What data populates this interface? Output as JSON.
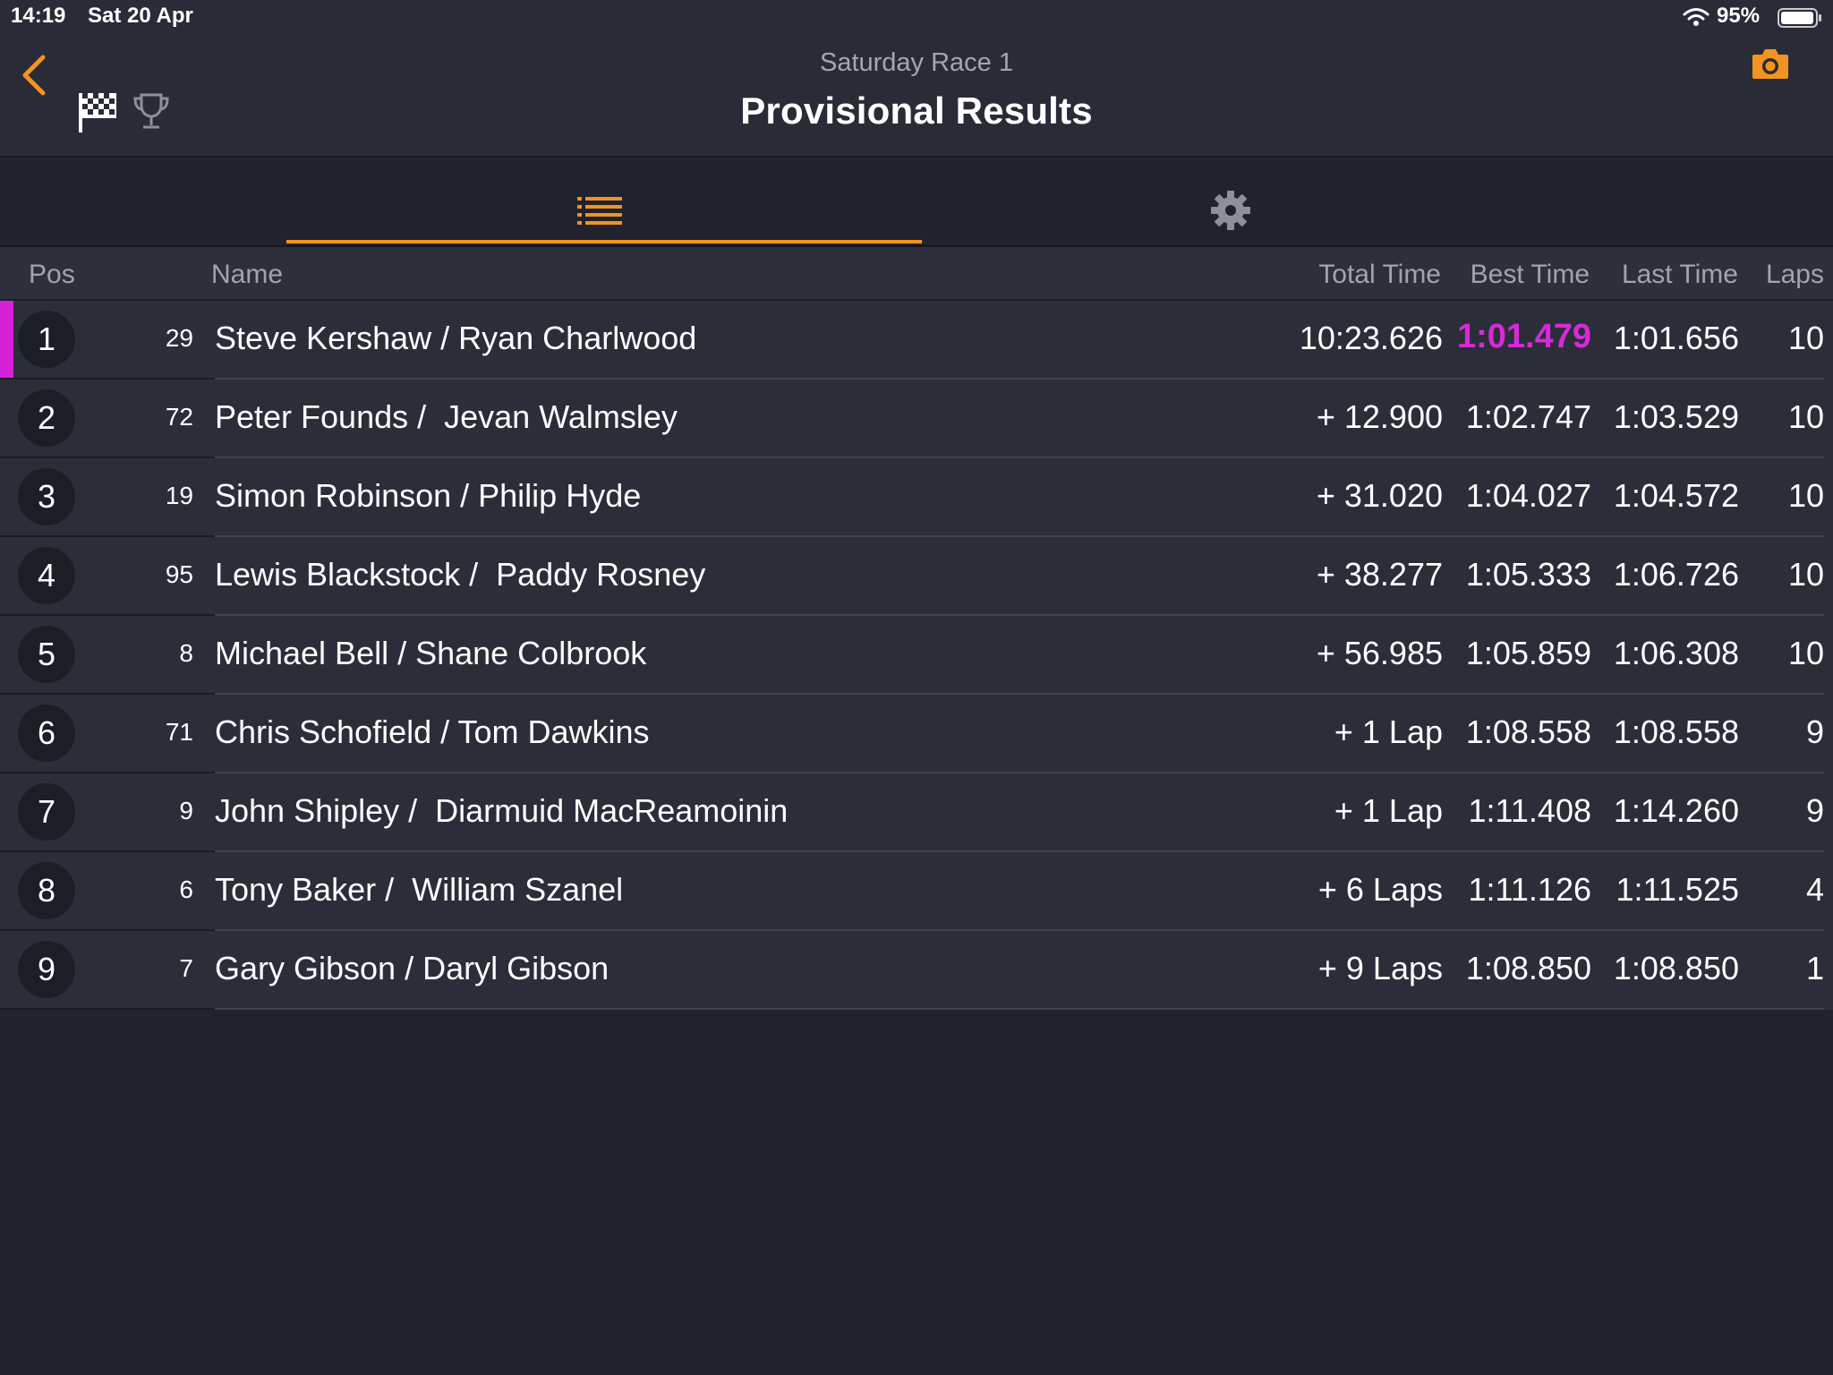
{
  "status_bar": {
    "time": "14:19",
    "date": "Sat 20 Apr",
    "battery_percent": "95%"
  },
  "header": {
    "subtitle": "Saturday Race 1",
    "title": "Provisional Results",
    "accent_color": "#f39321"
  },
  "tabs": [
    {
      "icon": "list-icon",
      "selected": true
    },
    {
      "icon": "gear-icon",
      "selected": false
    }
  ],
  "columns": {
    "pos": "Pos",
    "name": "Name",
    "total_time": "Total Time",
    "best_time": "Best Time",
    "last_time": "Last Time",
    "laps": "Laps"
  },
  "fastest_color": "#d521d8",
  "results": [
    {
      "pos": "1",
      "car": "29",
      "name": "Steve Kershaw / Ryan Charlwood",
      "total": "10:23.626",
      "best": "1:01.479",
      "last": "1:01.656",
      "laps": "10",
      "fastest": true
    },
    {
      "pos": "2",
      "car": "72",
      "name": "Peter Founds /  Jevan Walmsley",
      "total": "+ 12.900",
      "best": "1:02.747",
      "last": "1:03.529",
      "laps": "10",
      "fastest": false
    },
    {
      "pos": "3",
      "car": "19",
      "name": "Simon Robinson / Philip Hyde",
      "total": "+ 31.020",
      "best": "1:04.027",
      "last": "1:04.572",
      "laps": "10",
      "fastest": false
    },
    {
      "pos": "4",
      "car": "95",
      "name": "Lewis Blackstock /  Paddy Rosney",
      "total": "+ 38.277",
      "best": "1:05.333",
      "last": "1:06.726",
      "laps": "10",
      "fastest": false
    },
    {
      "pos": "5",
      "car": "8",
      "name": "Michael Bell / Shane Colbrook",
      "total": "+ 56.985",
      "best": "1:05.859",
      "last": "1:06.308",
      "laps": "10",
      "fastest": false
    },
    {
      "pos": "6",
      "car": "71",
      "name": "Chris Schofield / Tom Dawkins",
      "total": "+ 1 Lap",
      "best": "1:08.558",
      "last": "1:08.558",
      "laps": "9",
      "fastest": false
    },
    {
      "pos": "7",
      "car": "9",
      "name": "John Shipley /  Diarmuid MacReamoinin",
      "total": "+ 1 Lap",
      "best": "1:11.408",
      "last": "1:14.260",
      "laps": "9",
      "fastest": false
    },
    {
      "pos": "8",
      "car": "6",
      "name": "Tony Baker /  William Szanel",
      "total": "+ 6 Laps",
      "best": "1:11.126",
      "last": "1:11.525",
      "laps": "4",
      "fastest": false
    },
    {
      "pos": "9",
      "car": "7",
      "name": "Gary Gibson / Daryl Gibson",
      "total": "+ 9 Laps",
      "best": "1:08.850",
      "last": "1:08.850",
      "laps": "1",
      "fastest": false
    }
  ]
}
